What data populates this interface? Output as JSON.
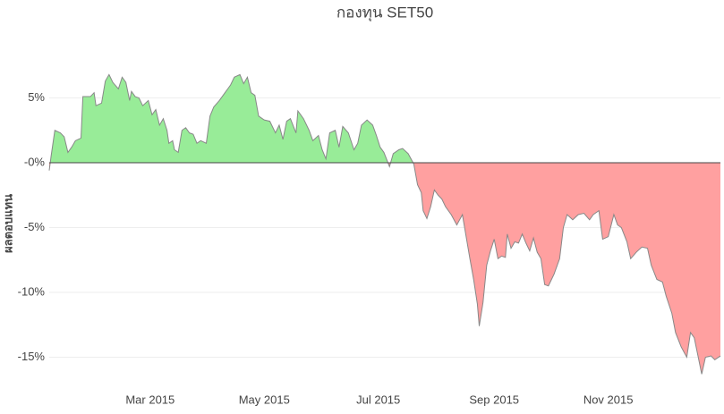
{
  "chart_data": {
    "type": "area",
    "title": "กองทุน SET50",
    "y_label": "ผลตอบแทน",
    "x": [
      6,
      7,
      9,
      12,
      14,
      16,
      18,
      20,
      23,
      24,
      28,
      30,
      31,
      34,
      36,
      38,
      40,
      43,
      45,
      47,
      49,
      50,
      52,
      54,
      56,
      59,
      61,
      63,
      65,
      67,
      69,
      70,
      72,
      73,
      75,
      77,
      79,
      81,
      83,
      85,
      87,
      90,
      92,
      94,
      97,
      100,
      103,
      105,
      108,
      110,
      112,
      114,
      116,
      118,
      121,
      124,
      127,
      129,
      131,
      133,
      135,
      138,
      139,
      142,
      145,
      147,
      150,
      152,
      154,
      156,
      159,
      161,
      163,
      166,
      169,
      171,
      173,
      176,
      179,
      181,
      183,
      185,
      188,
      190,
      193,
      195,
      198,
      201,
      203,
      205,
      206,
      208,
      210,
      212,
      214,
      216,
      218,
      221,
      224,
      227,
      229,
      231,
      233,
      235,
      236,
      238,
      240,
      242,
      244,
      246,
      248,
      250,
      251,
      253,
      255,
      257,
      259,
      261,
      263,
      265,
      267,
      269,
      271,
      273,
      276,
      279,
      281,
      283,
      286,
      289,
      292,
      295,
      297,
      300,
      302,
      305,
      308,
      310,
      312,
      315,
      317,
      320,
      323,
      326,
      328,
      331,
      334,
      336,
      339,
      341,
      344,
      347,
      349,
      351,
      353,
      355,
      357,
      360,
      362,
      365
    ],
    "values": [
      -0.6,
      0.5,
      2.5,
      2.3,
      2,
      0.8,
      1.2,
      1.7,
      1.9,
      5.1,
      5.1,
      5.4,
      4.4,
      4.6,
      6.3,
      6.8,
      6.2,
      5.7,
      6.6,
      6.2,
      4.8,
      5.5,
      5.1,
      5,
      4.4,
      4.8,
      3.7,
      4.1,
      2.9,
      3.4,
      2.5,
      1.5,
      1.7,
      1,
      0.8,
      2.5,
      2.7,
      2.3,
      2.2,
      1.5,
      1.7,
      1.5,
      3.6,
      4.3,
      4.8,
      5.4,
      6,
      6.6,
      6.8,
      6.1,
      6.6,
      5.4,
      5.2,
      3.6,
      3.3,
      3.2,
      2.3,
      2.9,
      1.8,
      3.2,
      3.4,
      2.3,
      4,
      3.4,
      2.5,
      1.7,
      2.1,
      1,
      0.3,
      2.3,
      2.5,
      1.2,
      2.8,
      2.3,
      1,
      1.5,
      2.9,
      3.3,
      2.9,
      2.1,
      1.2,
      0.8,
      -0.3,
      0.7,
      1,
      1.1,
      0.7,
      -0.1,
      -1.7,
      -2.3,
      -3.7,
      -4.3,
      -3.4,
      -2.1,
      -2.5,
      -2.8,
      -3.4,
      -4,
      -4.8,
      -4,
      -5.7,
      -7.4,
      -9,
      -10.9,
      -12.6,
      -10.8,
      -7.9,
      -6.8,
      -5.9,
      -7.4,
      -7.2,
      -7.3,
      -5.5,
      -6.6,
      -6.1,
      -6.2,
      -5.5,
      -6.2,
      -6.8,
      -5.8,
      -6.9,
      -7.4,
      -9.4,
      -9.5,
      -8.6,
      -7.4,
      -5,
      -4,
      -4.4,
      -4,
      -3.9,
      -4.4,
      -4,
      -3.7,
      -5.9,
      -5.7,
      -4,
      -4.8,
      -5,
      -6.1,
      -7.4,
      -6.9,
      -6.5,
      -6.6,
      -7.9,
      -9,
      -9.2,
      -10.3,
      -11.6,
      -13.1,
      -14.2,
      -15,
      -13.1,
      -13.5,
      -14.9,
      -16.3,
      -15,
      -14.9,
      -15.2,
      -14.9
    ],
    "xlim": [
      6,
      365
    ],
    "xticks": [
      {
        "value": 60,
        "label": "Mar 2015"
      },
      {
        "value": 121,
        "label": "May 2015"
      },
      {
        "value": 182,
        "label": "Jul 2015"
      },
      {
        "value": 244,
        "label": "Sep 2015"
      },
      {
        "value": 305,
        "label": "Nov 2015"
      }
    ],
    "ylim": [
      -17,
      9
    ],
    "yticks": [
      {
        "value": 5,
        "label": "5%"
      },
      {
        "value": 0,
        "label": "-0%"
      },
      {
        "value": -5,
        "label": "-5%"
      },
      {
        "value": -10,
        "label": "-10%"
      },
      {
        "value": -15,
        "label": "-15%"
      }
    ],
    "grid": true,
    "fill_positive": "#98ec98",
    "fill_negative": "#ffa0a0",
    "line_color": "#888888"
  }
}
